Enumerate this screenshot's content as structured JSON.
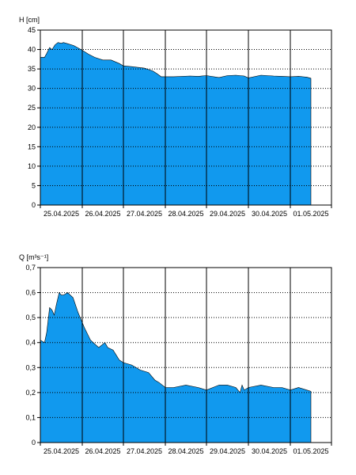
{
  "chart_data": [
    {
      "type": "area",
      "ylabel": "H [cm]",
      "ylim": [
        0,
        45
      ],
      "yticks": [
        "0",
        "5",
        "10",
        "15",
        "20",
        "25",
        "30",
        "35",
        "40",
        "45"
      ],
      "xlim": [
        0,
        7
      ],
      "xticks": [
        "25.04.2025",
        "26.04.2025",
        "27.04.2025",
        "28.04.2025",
        "29.04.2025",
        "30.04.2025",
        "01.05.2025"
      ],
      "grid": true,
      "fill_color": "#1199ee",
      "series": [
        {
          "x": [
            0,
            0.1,
            0.15,
            0.22,
            0.28,
            0.35,
            0.42,
            0.5,
            0.55,
            0.65,
            0.8,
            1.0,
            1.15,
            1.3,
            1.5,
            1.7,
            1.9,
            2.0,
            2.2,
            2.5,
            2.7,
            2.8,
            2.9,
            3.2,
            3.6,
            3.8,
            4.0,
            4.3,
            4.5,
            4.7,
            4.9,
            5.0,
            5.3,
            5.6,
            5.8,
            6.0,
            6.2,
            6.4,
            6.5
          ],
          "y": [
            38,
            38,
            39,
            40.5,
            40,
            41.2,
            41.8,
            41.6,
            41.8,
            41.5,
            41,
            39.8,
            38.8,
            38,
            37.3,
            37.3,
            36.4,
            35.8,
            35.6,
            35.2,
            34.5,
            33.8,
            33,
            33,
            33.2,
            33.1,
            33.3,
            32.8,
            33.3,
            33.4,
            33.2,
            32.7,
            33.4,
            33.2,
            33.1,
            33,
            33.1,
            32.9,
            32.6
          ]
        }
      ]
    },
    {
      "type": "area",
      "ylabel": "Q [m³s⁻¹]",
      "ylim": [
        0,
        0.7
      ],
      "yticks": [
        "0",
        "0,1",
        "0,2",
        "0,3",
        "0,4",
        "0,5",
        "0,6",
        "0,7"
      ],
      "xlim": [
        0,
        7
      ],
      "xticks": [
        "25.04.2025",
        "26.04.2025",
        "27.04.2025",
        "28.04.2025",
        "29.04.2025",
        "30.04.2025",
        "01.05.2025"
      ],
      "grid": true,
      "fill_color": "#1199ee",
      "series": [
        {
          "x": [
            0,
            0.1,
            0.15,
            0.22,
            0.28,
            0.33,
            0.38,
            0.45,
            0.5,
            0.55,
            0.65,
            0.78,
            0.9,
            1.05,
            1.2,
            1.4,
            1.55,
            1.62,
            1.75,
            1.9,
            2.0,
            2.2,
            2.4,
            2.6,
            2.75,
            2.85,
            3.0,
            3.2,
            3.5,
            3.8,
            4.0,
            4.3,
            4.5,
            4.7,
            4.8,
            4.85,
            4.9,
            5.0,
            5.3,
            5.6,
            5.8,
            6.0,
            6.2,
            6.4,
            6.5
          ],
          "y": [
            0.41,
            0.4,
            0.44,
            0.54,
            0.53,
            0.51,
            0.55,
            0.6,
            0.59,
            0.59,
            0.6,
            0.58,
            0.52,
            0.46,
            0.41,
            0.38,
            0.4,
            0.38,
            0.37,
            0.33,
            0.32,
            0.31,
            0.29,
            0.28,
            0.25,
            0.24,
            0.22,
            0.22,
            0.23,
            0.22,
            0.21,
            0.23,
            0.23,
            0.22,
            0.2,
            0.23,
            0.21,
            0.22,
            0.23,
            0.22,
            0.22,
            0.21,
            0.22,
            0.21,
            0.205
          ]
        }
      ]
    }
  ]
}
